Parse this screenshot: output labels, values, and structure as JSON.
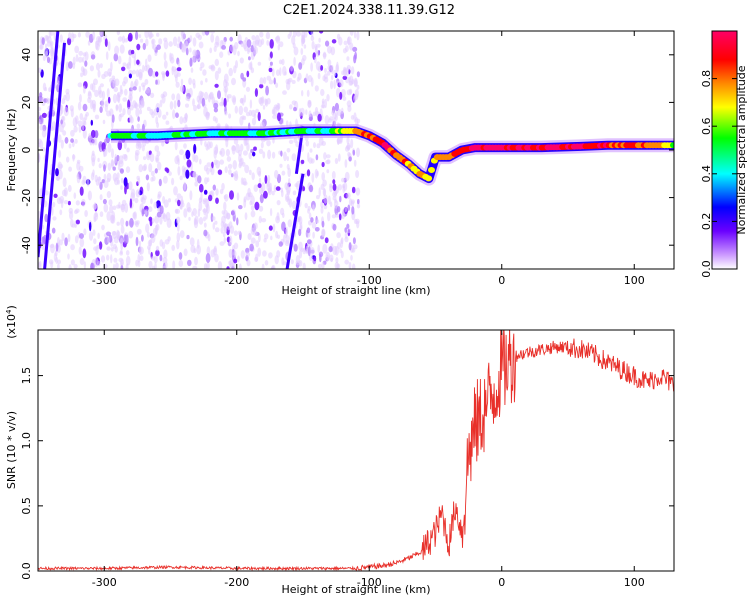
{
  "title": "C2E1.2024.338.11.39.G12",
  "chart_data": [
    {
      "type": "heatmap",
      "xlabel": "Height of straight line (km)",
      "ylabel": "Frequency (Hz)",
      "xlim": [
        -350,
        130
      ],
      "ylim": [
        -50,
        50
      ],
      "xticks": [
        -300,
        -200,
        -100,
        0,
        100
      ],
      "yticks": [
        -40,
        -20,
        0,
        20,
        40
      ],
      "colorbar": {
        "label": "Normalized spectral amplitude",
        "range": [
          0,
          1
        ],
        "ticks": [
          0.0,
          0.2,
          0.4,
          0.6,
          0.8
        ],
        "tick_labels": [
          "0.0",
          "0.2",
          "0.4",
          "0.6",
          "0.8"
        ],
        "colors": [
          "#ffffff",
          "#cc99ff",
          "#6a00ff",
          "#0000ff",
          "#00ffff",
          "#00ff00",
          "#ffff00",
          "#ff8800",
          "#ff0000",
          "#ff0066"
        ]
      },
      "ridge": [
        {
          "x": -295,
          "y": 6,
          "amp": 0.45
        },
        {
          "x": -260,
          "y": 6,
          "amp": 0.4
        },
        {
          "x": -220,
          "y": 7,
          "amp": 0.4
        },
        {
          "x": -180,
          "y": 7,
          "amp": 0.4
        },
        {
          "x": -150,
          "y": 8,
          "amp": 0.4
        },
        {
          "x": -130,
          "y": 8,
          "amp": 0.4
        },
        {
          "x": -120,
          "y": 8,
          "amp": 0.6
        },
        {
          "x": -110,
          "y": 8,
          "amp": 0.7
        },
        {
          "x": -100,
          "y": 6,
          "amp": 0.8
        },
        {
          "x": -90,
          "y": 3,
          "amp": 0.85
        },
        {
          "x": -80,
          "y": -2,
          "amp": 0.8
        },
        {
          "x": -70,
          "y": -6,
          "amp": 0.75
        },
        {
          "x": -62,
          "y": -10,
          "amp": 0.7
        },
        {
          "x": -55,
          "y": -12,
          "amp": 0.6
        },
        {
          "x": -50,
          "y": -3,
          "amp": 0.7
        },
        {
          "x": -40,
          "y": -3,
          "amp": 0.75
        },
        {
          "x": -30,
          "y": 0,
          "amp": 0.85
        },
        {
          "x": -20,
          "y": 1,
          "amp": 0.9
        },
        {
          "x": 0,
          "y": 1,
          "amp": 0.9
        },
        {
          "x": 30,
          "y": 1,
          "amp": 0.9
        },
        {
          "x": 60,
          "y": 1.5,
          "amp": 0.9
        },
        {
          "x": 80,
          "y": 2,
          "amp": 0.85
        },
        {
          "x": 100,
          "y": 2,
          "amp": 0.8
        },
        {
          "x": 130,
          "y": 2,
          "amp": 0.6
        }
      ]
    },
    {
      "type": "line",
      "xlabel": "Height of straight line (km)",
      "ylabel": "SNR (10 * v/v)",
      "y_multiplier": "(x10^4)",
      "xlim": [
        -350,
        130
      ],
      "ylim": [
        0,
        1.85
      ],
      "xticks": [
        -300,
        -200,
        -100,
        0,
        100
      ],
      "yticks": [
        0.0,
        0.5,
        1.0,
        1.5
      ],
      "ytick_labels": [
        "0.0",
        "0.5",
        "1.0",
        "1.5"
      ],
      "series": [
        {
          "color": "#e8302a",
          "x": [
            -350,
            -300,
            -250,
            -200,
            -150,
            -110,
            -100,
            -90,
            -80,
            -70,
            -60,
            -50,
            -45,
            -40,
            -35,
            -30,
            -25,
            -20,
            -15,
            -10,
            -5,
            0,
            5,
            10,
            20,
            30,
            40,
            50,
            60,
            70,
            80,
            90,
            100,
            110,
            120,
            130
          ],
          "y": [
            0.02,
            0.02,
            0.03,
            0.02,
            0.02,
            0.02,
            0.03,
            0.04,
            0.06,
            0.1,
            0.15,
            0.3,
            0.45,
            0.2,
            0.5,
            0.3,
            0.9,
            1.1,
            1.2,
            1.3,
            1.4,
            1.55,
            1.6,
            1.65,
            1.68,
            1.7,
            1.72,
            1.72,
            1.7,
            1.66,
            1.6,
            1.55,
            1.5,
            1.45,
            1.5,
            1.42
          ]
        }
      ]
    }
  ]
}
